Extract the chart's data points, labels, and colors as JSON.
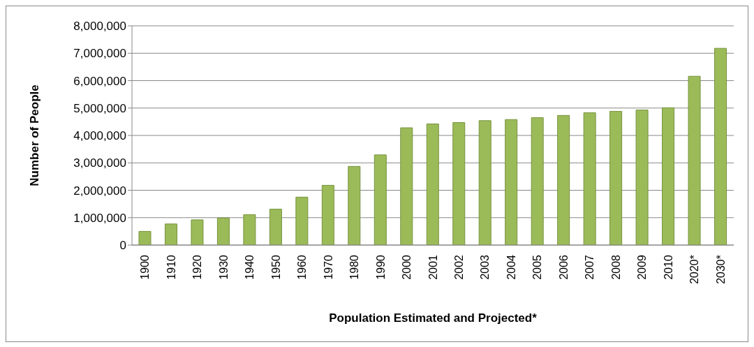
{
  "chart_data": {
    "type": "bar",
    "xlabel": "Population Estimated and Projected*",
    "ylabel": "Number of People",
    "categories": [
      "1900",
      "1910",
      "1920",
      "1930",
      "1940",
      "1950",
      "1960",
      "1970",
      "1980",
      "1990",
      "2000",
      "2001",
      "2002",
      "2003",
      "2004",
      "2005",
      "2006",
      "2007",
      "2008",
      "2009",
      "2010",
      "2020*",
      "2030*"
    ],
    "values": [
      500000,
      770000,
      920000,
      990000,
      1110000,
      1310000,
      1750000,
      2180000,
      2870000,
      3290000,
      4280000,
      4420000,
      4470000,
      4540000,
      4580000,
      4650000,
      4730000,
      4830000,
      4880000,
      4930000,
      5010000,
      6160000,
      7180000
    ],
    "color": "#9bbb59",
    "ylim": [
      0,
      8000000
    ],
    "yticks": [
      0,
      {
        "value": 1000000,
        "label": "1,000,000"
      },
      {
        "value": 2000000,
        "label": "2,000,000"
      },
      {
        "value": 3000000,
        "label": "3,000,000"
      },
      {
        "value": 4000000,
        "label": "4,000,000"
      },
      {
        "value": 5000000,
        "label": "5,000,000"
      },
      {
        "value": 6000000,
        "label": "6,000,000"
      },
      {
        "value": 7000000,
        "label": "7,000,000"
      },
      {
        "value": 8000000,
        "label": "8,000,000"
      }
    ],
    "grid": "y",
    "legend": false
  }
}
